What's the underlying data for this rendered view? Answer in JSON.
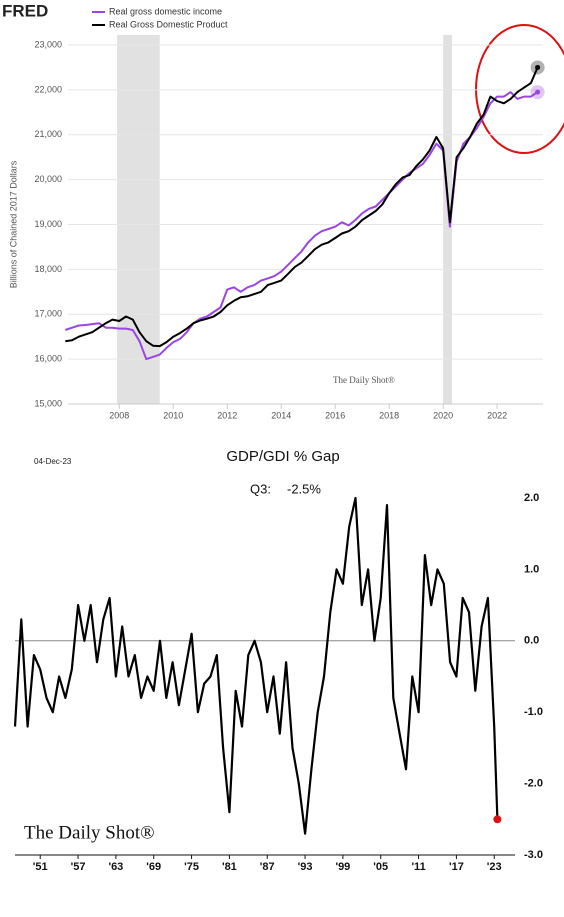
{
  "logo": "FRED",
  "chart_data": [
    {
      "type": "line",
      "y_label": "Billions of Chained 2017 Dollars",
      "watermark": "The Daily Shot®",
      "xlim": [
        2006.1,
        2023.7
      ],
      "xticks": [
        2008,
        2010,
        2012,
        2014,
        2016,
        2018,
        2020,
        2022
      ],
      "ylim": [
        15000,
        23000
      ],
      "yticks": [
        {
          "value": 15000,
          "label": "15,000"
        },
        {
          "value": 16000,
          "label": "16,000"
        },
        {
          "value": 17000,
          "label": "17,000"
        },
        {
          "value": 18000,
          "label": "18,000"
        },
        {
          "value": 19000,
          "label": "19,000"
        },
        {
          "value": 20000,
          "label": "20,000"
        },
        {
          "value": 21000,
          "label": "21,000"
        },
        {
          "value": 22000,
          "label": "22,000"
        },
        {
          "value": 23000,
          "label": "23,000"
        }
      ],
      "grid": true,
      "legend": "top-left",
      "recessions": [
        {
          "start": 2007.92,
          "end": 2009.5
        },
        {
          "start": 2020.0,
          "end": 2020.33
        }
      ],
      "x": [
        2006,
        2006.25,
        2006.5,
        2006.75,
        2007,
        2007.25,
        2007.5,
        2007.75,
        2008,
        2008.25,
        2008.5,
        2008.75,
        2009,
        2009.25,
        2009.5,
        2009.75,
        2010,
        2010.25,
        2010.5,
        2010.75,
        2011,
        2011.25,
        2011.5,
        2011.75,
        2012,
        2012.25,
        2012.5,
        2012.75,
        2013,
        2013.25,
        2013.5,
        2013.75,
        2014,
        2014.25,
        2014.5,
        2014.75,
        2015,
        2015.25,
        2015.5,
        2015.75,
        2016,
        2016.25,
        2016.5,
        2016.75,
        2017,
        2017.25,
        2017.5,
        2017.75,
        2018,
        2018.25,
        2018.5,
        2018.75,
        2019,
        2019.25,
        2019.5,
        2019.75,
        2020,
        2020.25,
        2020.5,
        2020.75,
        2021,
        2021.25,
        2021.5,
        2021.75,
        2022,
        2022.25,
        2022.5,
        2022.75,
        2023,
        2023.25,
        2023.5
      ],
      "series": [
        {
          "name": "Real gross domestic income",
          "color": "#9b45e4",
          "values": [
            16650,
            16700,
            16750,
            16760,
            16780,
            16800,
            16700,
            16700,
            16680,
            16680,
            16650,
            16400,
            16000,
            16050,
            16100,
            16250,
            16380,
            16450,
            16600,
            16800,
            16900,
            16950,
            17050,
            17150,
            17550,
            17600,
            17500,
            17600,
            17650,
            17750,
            17800,
            17850,
            17950,
            18100,
            18250,
            18400,
            18600,
            18750,
            18850,
            18900,
            18950,
            19050,
            18980,
            19100,
            19250,
            19350,
            19400,
            19550,
            19700,
            19850,
            20000,
            20150,
            20250,
            20350,
            20550,
            20800,
            20650,
            18950,
            20400,
            20800,
            20950,
            21150,
            21400,
            21700,
            21850,
            21850,
            21950,
            21800,
            21850,
            21850,
            21950
          ]
        },
        {
          "name": "Real Gross Domestic Product",
          "color": "#000000",
          "values": [
            16400,
            16420,
            16500,
            16550,
            16600,
            16700,
            16800,
            16880,
            16850,
            16950,
            16880,
            16600,
            16400,
            16300,
            16290,
            16380,
            16500,
            16580,
            16680,
            16800,
            16860,
            16900,
            16950,
            17050,
            17200,
            17300,
            17380,
            17400,
            17450,
            17500,
            17650,
            17700,
            17750,
            17900,
            18050,
            18150,
            18300,
            18450,
            18550,
            18600,
            18700,
            18800,
            18850,
            18950,
            19100,
            19200,
            19300,
            19450,
            19700,
            19900,
            20050,
            20100,
            20300,
            20450,
            20650,
            20950,
            20700,
            19050,
            20500,
            20700,
            20950,
            21250,
            21450,
            21850,
            21750,
            21700,
            21800,
            21950,
            22050,
            22150,
            22500
          ]
        }
      ]
    },
    {
      "type": "line",
      "title": "GDP/GDI % Gap",
      "date": "04-Dec-23",
      "annotation": "Q3:",
      "annotation_value": "-2.5%",
      "watermark": "The Daily Shot®",
      "color": "#000000",
      "zero_line": true,
      "xlim": [
        1947,
        2025.5
      ],
      "xticks": [
        {
          "value": 1951,
          "label": "'51"
        },
        {
          "value": 1957,
          "label": "'57"
        },
        {
          "value": 1963,
          "label": "'63"
        },
        {
          "value": 1969,
          "label": "'69"
        },
        {
          "value": 1975,
          "label": "'75"
        },
        {
          "value": 1981,
          "label": "'81"
        },
        {
          "value": 1987,
          "label": "'87"
        },
        {
          "value": 1993,
          "label": "'93"
        },
        {
          "value": 1999,
          "label": "'99"
        },
        {
          "value": 2005,
          "label": "'05"
        },
        {
          "value": 2011,
          "label": "'11"
        },
        {
          "value": 2017,
          "label": "'17"
        },
        {
          "value": 2023,
          "label": "'23"
        }
      ],
      "ylim": [
        -3,
        2
      ],
      "yticks": [
        {
          "value": -3,
          "label": "-3.0"
        },
        {
          "value": -2,
          "label": "-2.0"
        },
        {
          "value": -1,
          "label": "-1.0"
        },
        {
          "value": 0,
          "label": "0.0"
        },
        {
          "value": 1,
          "label": "1.0"
        },
        {
          "value": 2,
          "label": "2.0"
        }
      ],
      "x": [
        1947,
        1948,
        1949,
        1950,
        1951,
        1952,
        1953,
        1954,
        1955,
        1956,
        1957,
        1958,
        1959,
        1960,
        1961,
        1962,
        1963,
        1964,
        1965,
        1966,
        1967,
        1968,
        1969,
        1970,
        1971,
        1972,
        1973,
        1974,
        1975,
        1976,
        1977,
        1978,
        1979,
        1980,
        1981,
        1982,
        1983,
        1984,
        1985,
        1986,
        1987,
        1988,
        1989,
        1990,
        1991,
        1992,
        1993,
        1994,
        1995,
        1996,
        1997,
        1998,
        1999,
        2000,
        2001,
        2002,
        2003,
        2004,
        2005,
        2006,
        2007,
        2008,
        2009,
        2010,
        2011,
        2012,
        2013,
        2014,
        2015,
        2016,
        2017,
        2018,
        2019,
        2020,
        2021,
        2022,
        2023,
        2023.5
      ],
      "values": [
        -1.2,
        0.3,
        -1.2,
        -0.2,
        -0.4,
        -0.8,
        -1.0,
        -0.5,
        -0.8,
        -0.4,
        0.5,
        0.0,
        0.5,
        -0.3,
        0.3,
        0.6,
        -0.5,
        0.2,
        -0.5,
        -0.2,
        -0.8,
        -0.5,
        -0.7,
        0.0,
        -0.8,
        -0.3,
        -0.9,
        -0.4,
        0.1,
        -1.0,
        -0.6,
        -0.5,
        -0.2,
        -1.5,
        -2.4,
        -0.7,
        -1.2,
        -0.2,
        0.0,
        -0.3,
        -1.0,
        -0.5,
        -1.3,
        -0.3,
        -1.5,
        -2.0,
        -2.7,
        -1.8,
        -1.0,
        -0.5,
        0.4,
        1.0,
        0.8,
        1.6,
        2.0,
        0.5,
        1.0,
        0.0,
        0.6,
        1.9,
        -0.8,
        -1.3,
        -1.8,
        -0.5,
        -1.0,
        1.2,
        0.5,
        1.0,
        0.8,
        -0.3,
        -0.5,
        0.6,
        0.4,
        -0.7,
        0.2,
        0.6,
        -1.2,
        -2.5
      ]
    }
  ]
}
